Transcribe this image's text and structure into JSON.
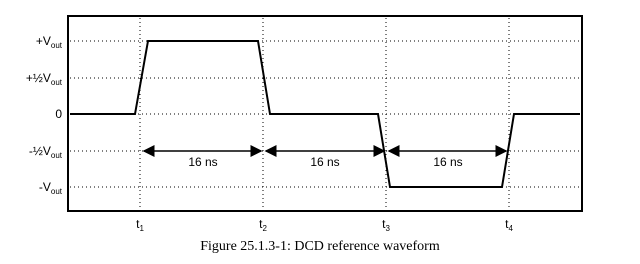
{
  "y_labels": [
    {
      "main": "+V",
      "sub": "out"
    },
    {
      "main": "+½V",
      "sub": "out"
    },
    {
      "main": "0",
      "sub": ""
    },
    {
      "main": "-½V",
      "sub": "out"
    },
    {
      "main": "-V",
      "sub": "out"
    }
  ],
  "x_labels": [
    {
      "main": "t",
      "sub": "1"
    },
    {
      "main": "t",
      "sub": "2"
    },
    {
      "main": "t",
      "sub": "3"
    },
    {
      "main": "t",
      "sub": "4"
    }
  ],
  "intervals": [
    "16 ns",
    "16 ns",
    "16 ns"
  ],
  "caption": "Figure 25.1.3-1:  DCD reference waveform"
}
